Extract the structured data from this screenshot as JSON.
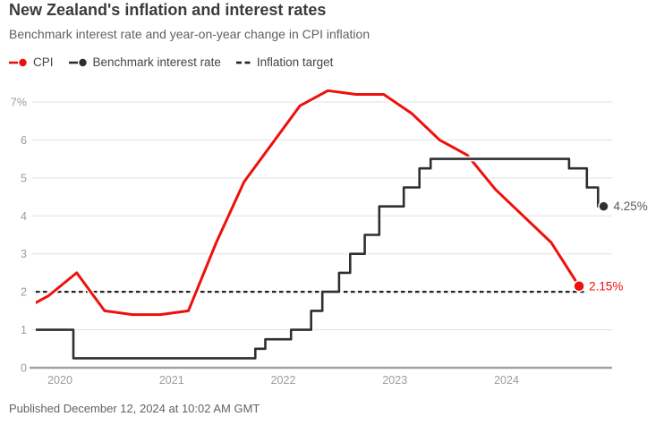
{
  "header": {
    "title": "New Zealand's inflation and interest rates",
    "subtitle": "Benchmark interest rate and year-on-year change in CPI inflation"
  },
  "legend": [
    {
      "label": "CPI",
      "marker": "line-dot",
      "color": "#ee100c"
    },
    {
      "label": "Benchmark interest rate",
      "marker": "line-dot",
      "color": "#2f2f2f"
    },
    {
      "label": "Inflation target",
      "marker": "dashes",
      "color": "#222222"
    }
  ],
  "footer": {
    "published": "Published December 12, 2024 at 10:02 AM GMT"
  },
  "chart_data": {
    "type": "line",
    "title": "New Zealand's inflation and interest rates",
    "subtitle": "Benchmark interest rate and year-on-year change in CPI inflation",
    "x_axis": {
      "ticks": [
        2020,
        2021,
        2022,
        2023,
        2024
      ],
      "labels": [
        "2020",
        "2021",
        "2022",
        "2023",
        "2024"
      ],
      "range": [
        2019.78,
        2024.94
      ]
    },
    "y_axis": {
      "ticks": [
        0,
        1,
        2,
        3,
        4,
        5,
        6,
        7
      ],
      "labels": [
        "0",
        "1",
        "2",
        "3",
        "4",
        "5",
        "6",
        "7%"
      ],
      "range": [
        0,
        7.55
      ],
      "grid": true
    },
    "series": [
      {
        "name": "CPI",
        "type": "line",
        "color": "#ee100c",
        "label_color": "#ee100c",
        "points": [
          [
            2019.65,
            1.5
          ],
          [
            2019.9,
            1.9
          ],
          [
            2020.15,
            2.5
          ],
          [
            2020.4,
            1.5
          ],
          [
            2020.65,
            1.4
          ],
          [
            2020.9,
            1.4
          ],
          [
            2021.15,
            1.5
          ],
          [
            2021.4,
            3.3
          ],
          [
            2021.65,
            4.9
          ],
          [
            2021.9,
            5.9
          ],
          [
            2022.15,
            6.9
          ],
          [
            2022.4,
            7.3
          ],
          [
            2022.65,
            7.2
          ],
          [
            2022.9,
            7.2
          ],
          [
            2023.15,
            6.7
          ],
          [
            2023.4,
            6.0
          ],
          [
            2023.65,
            5.6
          ],
          [
            2023.9,
            4.7
          ],
          [
            2024.15,
            4.0
          ],
          [
            2024.4,
            3.3
          ],
          [
            2024.65,
            2.15
          ]
        ],
        "end_label": "2.15%"
      },
      {
        "name": "Benchmark interest rate",
        "type": "step",
        "color": "#2f2f2f",
        "label_color": "#58595b",
        "points": [
          [
            2019.65,
            1.0
          ],
          [
            2020.12,
            0.25
          ],
          [
            2021.75,
            0.5
          ],
          [
            2021.84,
            0.75
          ],
          [
            2022.07,
            1.0
          ],
          [
            2022.25,
            1.5
          ],
          [
            2022.35,
            2.0
          ],
          [
            2022.5,
            2.5
          ],
          [
            2022.6,
            3.0
          ],
          [
            2022.73,
            3.5
          ],
          [
            2022.86,
            4.25
          ],
          [
            2023.08,
            4.75
          ],
          [
            2023.22,
            5.25
          ],
          [
            2023.32,
            5.5
          ],
          [
            2024.56,
            5.25
          ],
          [
            2024.72,
            4.75
          ],
          [
            2024.82,
            4.25
          ],
          [
            2024.87,
            4.25
          ]
        ],
        "end_label": "4.25%"
      },
      {
        "name": "Inflation target",
        "type": "dashed-horizontal",
        "color": "#222222",
        "value": 2
      }
    ]
  }
}
